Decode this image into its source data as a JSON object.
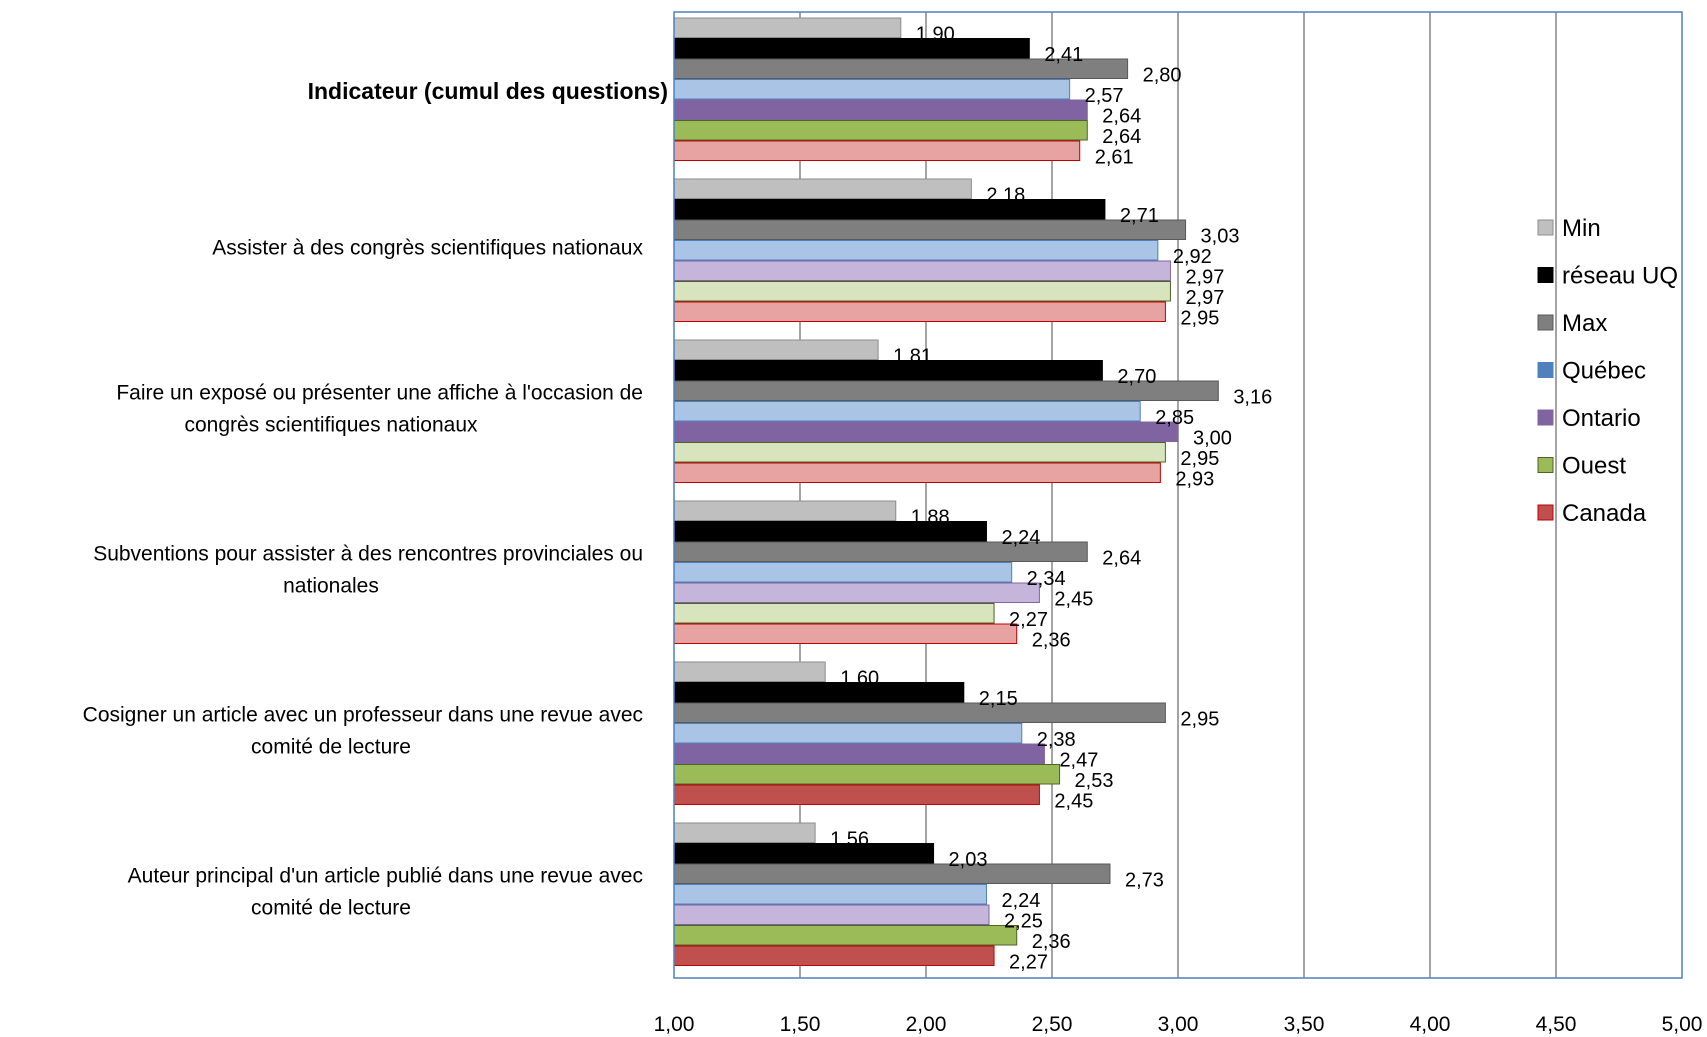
{
  "chart_data": {
    "type": "bar",
    "orientation": "horizontal",
    "title": "",
    "xlabel": "",
    "ylabel": "",
    "xlim": [
      1.0,
      5.0
    ],
    "xticks": [
      1.0,
      1.5,
      2.0,
      2.5,
      3.0,
      3.5,
      4.0,
      4.5,
      5.0
    ],
    "xtick_labels": [
      "1,00",
      "1,50",
      "2,00",
      "2,50",
      "3,00",
      "3,50",
      "4,00",
      "4,50",
      "5,00"
    ],
    "grid": true,
    "legend_position": "right",
    "categories": [
      {
        "label_lines": [
          "Indicateur (cumul des questions)"
        ],
        "bold": true
      },
      {
        "label_lines": [
          "Assister à des congrès scientifiques nationaux"
        ],
        "bold": false
      },
      {
        "label_lines": [
          "Faire un exposé ou présenter une affiche à l'occasion de",
          "congrès scientifiques nationaux"
        ],
        "bold": false
      },
      {
        "label_lines": [
          "Subventions pour assister à des rencontres provinciales ou",
          "nationales"
        ],
        "bold": false
      },
      {
        "label_lines": [
          "Cosigner un article avec un professeur dans une revue avec",
          "comité de lecture"
        ],
        "bold": false
      },
      {
        "label_lines": [
          "Auteur principal d'un article publié dans une revue avec",
          "comité de lecture"
        ],
        "bold": false
      }
    ],
    "series": [
      {
        "name": "Min",
        "color": "#bfbfbf",
        "stroke": "#8c8c8c",
        "values": [
          1.9,
          2.18,
          1.81,
          1.88,
          1.6,
          1.56
        ],
        "labels": [
          "1,90",
          "2,18",
          "1,81",
          "1,88",
          "1,60",
          "1,56"
        ],
        "fills": [
          "#bfbfbf",
          "#bfbfbf",
          "#bfbfbf",
          "#bfbfbf",
          "#bfbfbf",
          "#bfbfbf"
        ]
      },
      {
        "name": "réseau UQ",
        "color": "#000000",
        "stroke": "#000000",
        "values": [
          2.41,
          2.71,
          2.7,
          2.24,
          2.15,
          2.03
        ],
        "labels": [
          "2,41",
          "2,71",
          "2,70",
          "2,24",
          "2,15",
          "2,03"
        ],
        "fills": [
          "#000000",
          "#000000",
          "#000000",
          "#000000",
          "#000000",
          "#000000"
        ]
      },
      {
        "name": "Max",
        "color": "#7f7f7f",
        "stroke": "#595959",
        "values": [
          2.8,
          3.03,
          3.16,
          2.64,
          2.95,
          2.73
        ],
        "labels": [
          "2,80",
          "3,03",
          "3,16",
          "2,64",
          "2,95",
          "2,73"
        ],
        "fills": [
          "#7f7f7f",
          "#7f7f7f",
          "#7f7f7f",
          "#7f7f7f",
          "#7f7f7f",
          "#7f7f7f"
        ]
      },
      {
        "name": "Québec",
        "color": "#4f81bd",
        "stroke": "#4f81bd",
        "values": [
          2.57,
          2.92,
          2.85,
          2.34,
          2.38,
          2.24
        ],
        "labels": [
          "2,57",
          "2,92",
          "2,85",
          "2,34",
          "2,38",
          "2,24"
        ],
        "fills": [
          "#a9c4e4",
          "#a9c4e4",
          "#a9c4e4",
          "#a9c4e4",
          "#a9c4e4",
          "#a9c4e4"
        ]
      },
      {
        "name": "Ontario",
        "color": "#8064a2",
        "stroke": "#8064a2",
        "values": [
          2.64,
          2.97,
          3.0,
          2.45,
          2.47,
          2.25
        ],
        "labels": [
          "2,64",
          "2,97",
          "3,00",
          "2,45",
          "2,47",
          "2,25"
        ],
        "fills": [
          "#8064a2",
          "#c5b5da",
          "#8064a2",
          "#c5b5da",
          "#8064a2",
          "#c5b5da"
        ]
      },
      {
        "name": "Ouest",
        "color": "#9bbb59",
        "stroke": "#4f6228",
        "values": [
          2.64,
          2.97,
          2.95,
          2.27,
          2.53,
          2.36
        ],
        "labels": [
          "2,64",
          "2,97",
          "2,95",
          "2,27",
          "2,53",
          "2,36"
        ],
        "fills": [
          "#9bbb59",
          "#d7e4bd",
          "#d7e4bd",
          "#d7e4bd",
          "#9bbb59",
          "#9bbb59"
        ]
      },
      {
        "name": "Canada",
        "color": "#c0504d",
        "stroke": "#c00000",
        "values": [
          2.61,
          2.95,
          2.93,
          2.36,
          2.45,
          2.27
        ],
        "labels": [
          "2,61",
          "2,95",
          "2,93",
          "2,36",
          "2,45",
          "2,27"
        ],
        "fills": [
          "#e6a3a1",
          "#e6a3a1",
          "#e6a3a1",
          "#e6a3a1",
          "#c0504d",
          "#c0504d"
        ]
      }
    ]
  }
}
